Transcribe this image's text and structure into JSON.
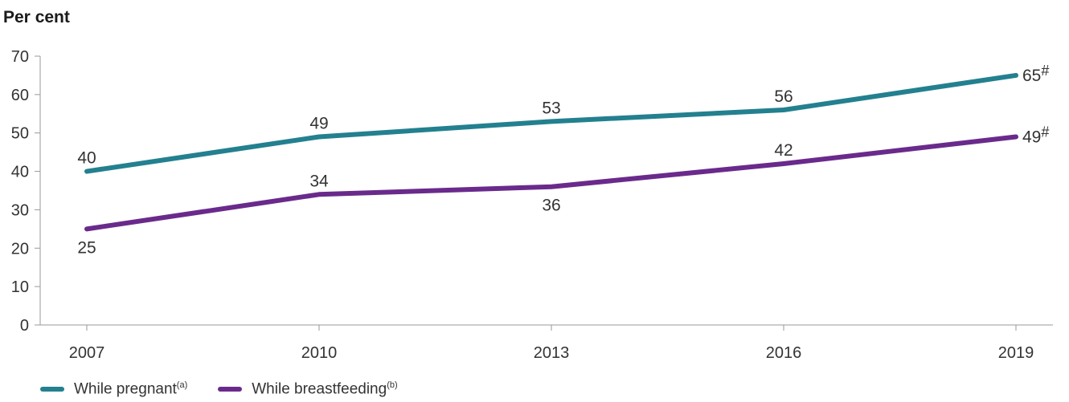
{
  "chart_data": {
    "type": "line",
    "ylabel": "Per cent",
    "xlabel": "",
    "x": [
      "2007",
      "2010",
      "2013",
      "2016",
      "2019"
    ],
    "ylim": [
      0,
      70
    ],
    "yticks": [
      0,
      10,
      20,
      30,
      40,
      50,
      60,
      70
    ],
    "grid": false,
    "legend": "bottom-left",
    "series": [
      {
        "name": "While pregnant",
        "name_note": "(a)",
        "color": "#23808f",
        "values": [
          40,
          49,
          53,
          56,
          65
        ],
        "labels": [
          "40",
          "49",
          "53",
          "56",
          "65"
        ],
        "label_marks": [
          "",
          "",
          "",
          "",
          "#"
        ]
      },
      {
        "name": "While breastfeeding",
        "name_note": "(b)",
        "color": "#6a2a8c",
        "values": [
          25,
          34,
          36,
          42,
          49
        ],
        "labels": [
          "25",
          "34",
          "36",
          "42",
          "49"
        ],
        "label_marks": [
          "",
          "",
          "",
          "",
          "#"
        ]
      }
    ]
  }
}
